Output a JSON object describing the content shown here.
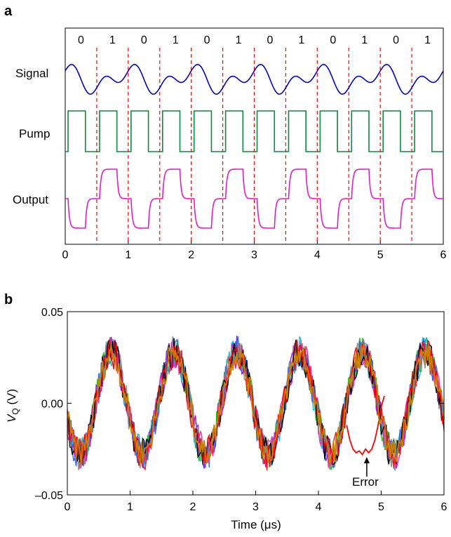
{
  "chart_data": [
    {
      "panel": "a",
      "type": "line",
      "x_ticks": [
        "0",
        "1",
        "2",
        "3",
        "4",
        "5",
        "6"
      ],
      "xlim": [
        0,
        6
      ],
      "bit_labels": [
        "0",
        "1",
        "0",
        "1",
        "0",
        "1",
        "0",
        "1",
        "0",
        "1",
        "0",
        "1"
      ],
      "bit_boundaries": [
        0.5,
        1.0,
        1.5,
        2.0,
        2.5,
        3.0,
        3.5,
        4.0,
        4.5,
        5.0,
        5.5
      ],
      "series": [
        {
          "name": "Signal",
          "color": "#0000cc"
        },
        {
          "name": "Pump",
          "color": "#0a8a3c"
        },
        {
          "name": "Output",
          "color": "#e61bc8"
        }
      ],
      "boundary_color": "#ff0000",
      "grid": false
    },
    {
      "panel": "b",
      "type": "line",
      "xlabel": "Time (μs)",
      "ylabel_main": "V",
      "ylabel_sub": "Q",
      "ylabel_unit": " (V)",
      "x_ticks": [
        "0",
        "1",
        "2",
        "3",
        "4",
        "5",
        "6"
      ],
      "y_ticks": [
        "0.05",
        "0.00",
        "–0.05"
      ],
      "xlim": [
        0,
        6
      ],
      "ylim": [
        -0.05,
        0.05
      ],
      "annotation": "Error",
      "error_trace": {
        "color": "#ff0000",
        "x": [
          4.45,
          4.5,
          4.55,
          4.6,
          4.65,
          4.7,
          4.75,
          4.8,
          4.85,
          4.9,
          4.95,
          5.0,
          5.05
        ],
        "y": [
          -0.012,
          -0.02,
          -0.025,
          -0.027,
          -0.026,
          -0.028,
          -0.025,
          -0.027,
          -0.025,
          -0.02,
          -0.012,
          -0.002,
          0.004
        ]
      },
      "trace_colors": [
        "#00cc00",
        "#8b00ff",
        "#00bcd4",
        "#1e64ff",
        "#ff1493",
        "#888888",
        "#000000",
        "#ff0000",
        "#cc8000"
      ],
      "grid": false
    }
  ]
}
